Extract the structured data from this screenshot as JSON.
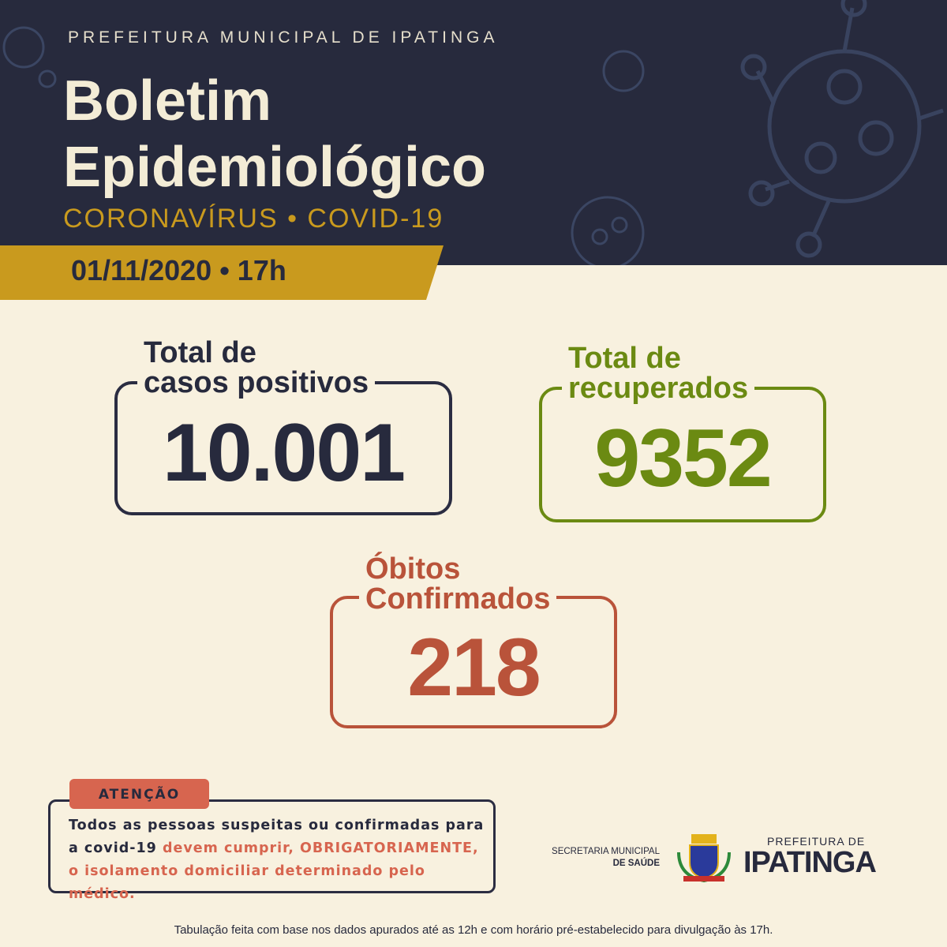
{
  "header": {
    "org": "PREFEITURA MUNICIPAL DE IPATINGA",
    "title": [
      "Boletim",
      "Epidemiológico"
    ],
    "subtitle": "CORONAVÍRUS • COVID-19",
    "date": "01/11/2020 • 17h"
  },
  "stats": [
    {
      "label": [
        "Total de",
        "casos positivos"
      ],
      "value": "10.001"
    },
    {
      "label": [
        "Total de",
        "recuperados"
      ],
      "value": "9352"
    },
    {
      "label": [
        "Óbitos",
        "Confirmados"
      ],
      "value": "218"
    }
  ],
  "notice": {
    "tag": "ATENÇÃO",
    "text": "Todos as pessoas suspeitas ou confirmadas para a covid-19",
    "highlight": "devem cumprir, OBRIGATORIAMENTE, o isolamento domiciliar determinado pelo médico."
  },
  "logos": {
    "secretaria": [
      "SECRETARIA MUNICIPAL",
      "DE SAÚDE"
    ],
    "prefeitura": [
      "PREFEITURA DE",
      "IPATINGA"
    ]
  },
  "footer": "Tabulação feita com base nos dados apurados até as 12h e com horário pré-estabelecido para divulgação às 17h."
}
